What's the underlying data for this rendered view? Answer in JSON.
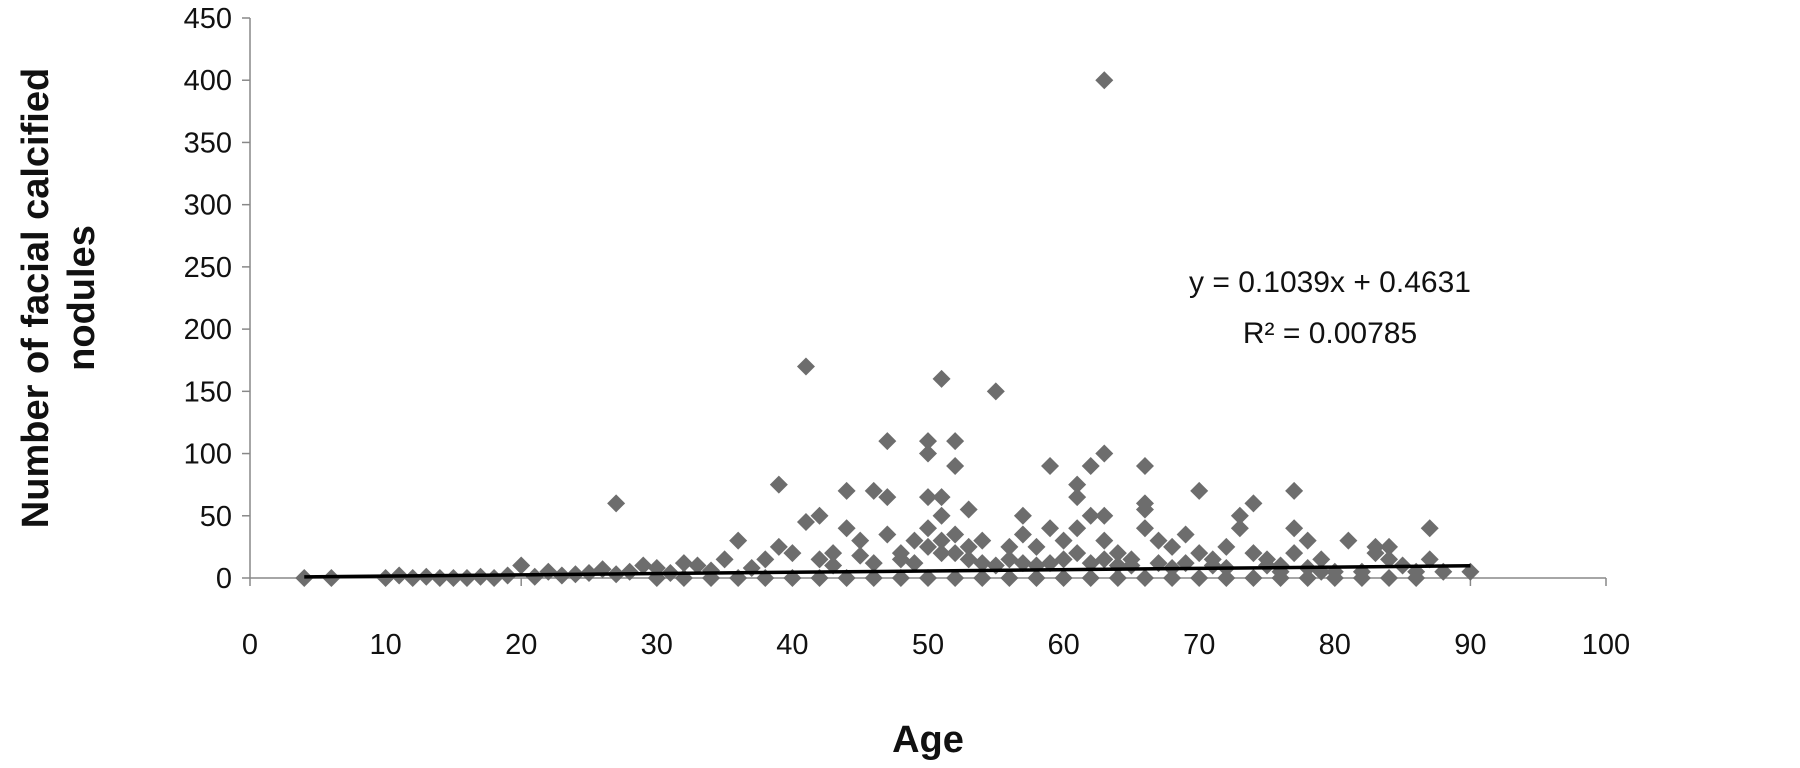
{
  "chart_data": {
    "type": "scatter",
    "title": "",
    "xlabel": "Age",
    "ylabel": "Number of facial calcified nodules",
    "xlim": [
      0,
      100
    ],
    "ylim": [
      0,
      450
    ],
    "xticks": [
      "0",
      "10",
      "20",
      "30",
      "40",
      "50",
      "60",
      "70",
      "80",
      "90",
      "100"
    ],
    "yticks": [
      "0",
      "50",
      "100",
      "150",
      "200",
      "250",
      "300",
      "350",
      "400",
      "450"
    ],
    "grid": false,
    "legend": "none",
    "marker": "diamond",
    "marker_color": "#6d6d6d",
    "trendline": {
      "slope": 0.1039,
      "intercept": 0.4631,
      "x_range": [
        4,
        90
      ],
      "color": "#000000",
      "equation_label": "y = 0.1039x + 0.4631",
      "r2_label": "R² = 0.00785"
    },
    "series": [
      {
        "values": [
          [
            4,
            0
          ],
          [
            6,
            0
          ],
          [
            10,
            0
          ],
          [
            11,
            2
          ],
          [
            12,
            0
          ],
          [
            13,
            1
          ],
          [
            14,
            0
          ],
          [
            15,
            0
          ],
          [
            16,
            0
          ],
          [
            17,
            1
          ],
          [
            18,
            0
          ],
          [
            19,
            2
          ],
          [
            20,
            10
          ],
          [
            21,
            1
          ],
          [
            22,
            5
          ],
          [
            23,
            2
          ],
          [
            24,
            3
          ],
          [
            25,
            4
          ],
          [
            26,
            7
          ],
          [
            27,
            60
          ],
          [
            27,
            3
          ],
          [
            28,
            5
          ],
          [
            29,
            10
          ],
          [
            30,
            8
          ],
          [
            31,
            4
          ],
          [
            32,
            12
          ],
          [
            33,
            10
          ],
          [
            34,
            6
          ],
          [
            35,
            15
          ],
          [
            36,
            30
          ],
          [
            37,
            8
          ],
          [
            38,
            15
          ],
          [
            39,
            75
          ],
          [
            39,
            25
          ],
          [
            40,
            20
          ],
          [
            41,
            170
          ],
          [
            41,
            45
          ],
          [
            42,
            50
          ],
          [
            43,
            10
          ],
          [
            44,
            70
          ],
          [
            44,
            40
          ],
          [
            45,
            30
          ],
          [
            46,
            70
          ],
          [
            47,
            110
          ],
          [
            47,
            65
          ],
          [
            47,
            35
          ],
          [
            48,
            20
          ],
          [
            49,
            30
          ],
          [
            50,
            110
          ],
          [
            50,
            100
          ],
          [
            50,
            65
          ],
          [
            50,
            40
          ],
          [
            51,
            160
          ],
          [
            51,
            65
          ],
          [
            51,
            50
          ],
          [
            51,
            30
          ],
          [
            52,
            110
          ],
          [
            52,
            90
          ],
          [
            52,
            35
          ],
          [
            53,
            55
          ],
          [
            53,
            25
          ],
          [
            54,
            30
          ],
          [
            55,
            150
          ],
          [
            55,
            10
          ],
          [
            56,
            25
          ],
          [
            57,
            50
          ],
          [
            57,
            35
          ],
          [
            58,
            25
          ],
          [
            59,
            90
          ],
          [
            59,
            40
          ],
          [
            60,
            30
          ],
          [
            61,
            75
          ],
          [
            61,
            65
          ],
          [
            61,
            40
          ],
          [
            62,
            90
          ],
          [
            62,
            50
          ],
          [
            63,
            400
          ],
          [
            63,
            100
          ],
          [
            63,
            50
          ],
          [
            63,
            30
          ],
          [
            64,
            20
          ],
          [
            65,
            10
          ],
          [
            66,
            90
          ],
          [
            66,
            60
          ],
          [
            66,
            55
          ],
          [
            66,
            40
          ],
          [
            67,
            30
          ],
          [
            68,
            25
          ],
          [
            69,
            35
          ],
          [
            70,
            70
          ],
          [
            70,
            20
          ],
          [
            71,
            10
          ],
          [
            72,
            25
          ],
          [
            73,
            40
          ],
          [
            73,
            50
          ],
          [
            74,
            60
          ],
          [
            74,
            20
          ],
          [
            75,
            10
          ],
          [
            76,
            10
          ],
          [
            77,
            70
          ],
          [
            77,
            40
          ],
          [
            77,
            20
          ],
          [
            78,
            30
          ],
          [
            79,
            15
          ],
          [
            80,
            5
          ],
          [
            81,
            30
          ],
          [
            82,
            5
          ],
          [
            83,
            25
          ],
          [
            83,
            20
          ],
          [
            84,
            25
          ],
          [
            84,
            15
          ],
          [
            85,
            10
          ],
          [
            86,
            5
          ],
          [
            87,
            40
          ],
          [
            87,
            15
          ],
          [
            88,
            5
          ],
          [
            90,
            5
          ],
          [
            30,
            0
          ],
          [
            32,
            0
          ],
          [
            34,
            0
          ],
          [
            36,
            0
          ],
          [
            38,
            0
          ],
          [
            40,
            0
          ],
          [
            42,
            0
          ],
          [
            44,
            0
          ],
          [
            46,
            0
          ],
          [
            48,
            0
          ],
          [
            50,
            0
          ],
          [
            52,
            0
          ],
          [
            54,
            0
          ],
          [
            56,
            0
          ],
          [
            58,
            0
          ],
          [
            60,
            0
          ],
          [
            62,
            0
          ],
          [
            64,
            0
          ],
          [
            66,
            0
          ],
          [
            68,
            0
          ],
          [
            70,
            0
          ],
          [
            72,
            0
          ],
          [
            74,
            0
          ],
          [
            76,
            0
          ],
          [
            78,
            0
          ],
          [
            80,
            0
          ],
          [
            82,
            0
          ],
          [
            84,
            0
          ],
          [
            86,
            0
          ],
          [
            42,
            15
          ],
          [
            43,
            20
          ],
          [
            45,
            18
          ],
          [
            46,
            12
          ],
          [
            48,
            15
          ],
          [
            49,
            12
          ],
          [
            50,
            25
          ],
          [
            51,
            20
          ],
          [
            52,
            20
          ],
          [
            53,
            15
          ],
          [
            54,
            12
          ],
          [
            56,
            15
          ],
          [
            57,
            12
          ],
          [
            58,
            10
          ],
          [
            59,
            12
          ],
          [
            60,
            15
          ],
          [
            61,
            20
          ],
          [
            62,
            12
          ],
          [
            63,
            15
          ],
          [
            64,
            10
          ],
          [
            65,
            15
          ],
          [
            67,
            12
          ],
          [
            68,
            8
          ],
          [
            69,
            12
          ],
          [
            71,
            15
          ],
          [
            72,
            8
          ],
          [
            75,
            15
          ],
          [
            76,
            5
          ],
          [
            78,
            8
          ],
          [
            79,
            5
          ]
        ]
      }
    ]
  }
}
